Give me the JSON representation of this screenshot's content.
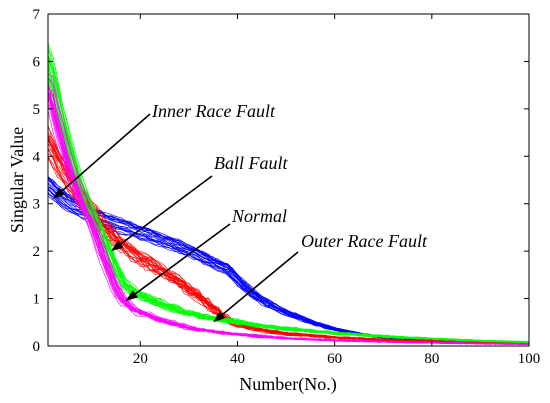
{
  "chart_data": {
    "type": "line",
    "xlabel": "Number(No.)",
    "ylabel": "Singular Value",
    "xlim": [
      1,
      100
    ],
    "ylim": [
      0,
      7
    ],
    "x_ticks": [
      20,
      40,
      60,
      80,
      100
    ],
    "y_ticks": [
      0,
      1,
      2,
      3,
      4,
      5,
      6,
      7
    ],
    "grid": false,
    "legend": "none",
    "series": [
      {
        "color": "#0000ff",
        "x": [
          1,
          2,
          5,
          10,
          15,
          20,
          25,
          30,
          35,
          38,
          40,
          43,
          45,
          50,
          55,
          60,
          65,
          70,
          75,
          80,
          90,
          100
        ],
        "y": [
          3.4,
          3.25,
          3.0,
          2.75,
          2.55,
          2.38,
          2.2,
          2.0,
          1.75,
          1.6,
          1.38,
          1.1,
          0.95,
          0.7,
          0.5,
          0.35,
          0.25,
          0.18,
          0.14,
          0.11,
          0.08,
          0.06
        ],
        "spread": 0.07
      },
      {
        "color": "#ff0000",
        "x": [
          1,
          2,
          4,
          6,
          8,
          10,
          12,
          15,
          18,
          20,
          25,
          30,
          35,
          38,
          40,
          45,
          50,
          60,
          70,
          80,
          90,
          100
        ],
        "y": [
          4.35,
          4.1,
          3.7,
          3.4,
          3.1,
          2.85,
          2.55,
          2.25,
          2.0,
          1.85,
          1.55,
          1.2,
          0.8,
          0.55,
          0.45,
          0.33,
          0.26,
          0.18,
          0.13,
          0.1,
          0.08,
          0.06
        ],
        "spread": 0.14
      },
      {
        "color": "#00ff00",
        "x": [
          1,
          2,
          3,
          5,
          7,
          9,
          11,
          13,
          15,
          17,
          20,
          25,
          30,
          35,
          40,
          45,
          50,
          60,
          70,
          80,
          90,
          100
        ],
        "y": [
          6.0,
          5.6,
          5.05,
          4.2,
          3.5,
          2.95,
          2.55,
          2.1,
          1.6,
          1.25,
          1.05,
          0.85,
          0.68,
          0.58,
          0.5,
          0.42,
          0.36,
          0.27,
          0.2,
          0.15,
          0.11,
          0.08
        ],
        "spread": 0.12
      },
      {
        "color": "#ff00ff",
        "x": [
          1,
          2,
          3,
          5,
          7,
          9,
          10,
          12,
          14,
          16,
          18,
          20,
          25,
          30,
          35,
          40,
          50,
          60,
          70,
          80,
          90,
          100
        ],
        "y": [
          5.45,
          5.0,
          4.6,
          3.85,
          3.2,
          2.8,
          2.55,
          1.95,
          1.4,
          1.0,
          0.8,
          0.7,
          0.52,
          0.38,
          0.3,
          0.24,
          0.16,
          0.12,
          0.09,
          0.07,
          0.05,
          0.04
        ],
        "spread": 0.14
      }
    ],
    "annotations": [
      {
        "text": "Inner Race Fault",
        "target": [
          2,
          3.1
        ]
      },
      {
        "text": "Ball Fault",
        "target": [
          14,
          2.0
        ]
      },
      {
        "text": "Normal",
        "target": [
          17,
          0.95
        ]
      },
      {
        "text": "Outer Race Fault",
        "target": [
          35,
          0.5
        ]
      }
    ]
  }
}
